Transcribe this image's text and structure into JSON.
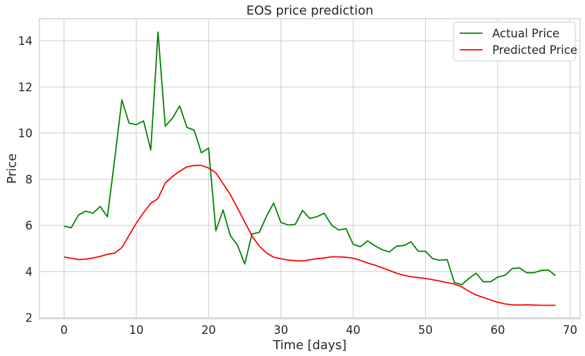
{
  "chart_data": {
    "type": "line",
    "title": "EOS price prediction",
    "xlabel": "Time [days]",
    "ylabel": "Price",
    "xlim": [
      -3.4,
      71.4
    ],
    "ylim": [
      1.96,
      14.96
    ],
    "xticks": [
      0,
      10,
      20,
      30,
      40,
      50,
      60,
      70
    ],
    "yticks": [
      2,
      4,
      6,
      8,
      10,
      12,
      14
    ],
    "grid": true,
    "legend_position": "upper right",
    "x": [
      0,
      1,
      2,
      3,
      4,
      5,
      6,
      7,
      8,
      9,
      10,
      11,
      12,
      13,
      14,
      15,
      16,
      17,
      18,
      19,
      20,
      21,
      22,
      23,
      24,
      25,
      26,
      27,
      28,
      29,
      30,
      31,
      32,
      33,
      34,
      35,
      36,
      37,
      38,
      39,
      40,
      41,
      42,
      43,
      44,
      45,
      46,
      47,
      48,
      49,
      50,
      51,
      52,
      53,
      54,
      55,
      56,
      57,
      58,
      59,
      60,
      61,
      62,
      63,
      64,
      65,
      66,
      67,
      68
    ],
    "series": [
      {
        "name": "Actual Price",
        "color": "#008000",
        "values": [
          5.97,
          5.9,
          6.45,
          6.62,
          6.53,
          6.82,
          6.38,
          8.85,
          11.44,
          10.43,
          10.37,
          10.53,
          9.27,
          14.38,
          10.3,
          10.65,
          11.18,
          10.25,
          10.13,
          9.15,
          9.35,
          5.77,
          6.67,
          5.56,
          5.14,
          4.33,
          5.63,
          5.7,
          6.39,
          6.97,
          6.13,
          6.02,
          6.05,
          6.65,
          6.3,
          6.38,
          6.53,
          6.02,
          5.8,
          5.86,
          5.18,
          5.08,
          5.33,
          5.12,
          4.95,
          4.85,
          5.1,
          5.13,
          5.29,
          4.88,
          4.88,
          4.56,
          4.49,
          4.52,
          3.53,
          3.43,
          3.7,
          3.93,
          3.56,
          3.56,
          3.76,
          3.84,
          4.13,
          4.16,
          3.95,
          3.95,
          4.05,
          4.07,
          3.83
        ]
      },
      {
        "name": "Predicted Price",
        "color": "#ff0000",
        "values": [
          4.63,
          4.58,
          4.52,
          4.54,
          4.59,
          4.66,
          4.75,
          4.8,
          5.04,
          5.57,
          6.1,
          6.55,
          6.96,
          7.17,
          7.84,
          8.12,
          8.35,
          8.54,
          8.6,
          8.6,
          8.49,
          8.28,
          7.81,
          7.34,
          6.75,
          6.15,
          5.55,
          5.11,
          4.81,
          4.62,
          4.56,
          4.5,
          4.47,
          4.46,
          4.51,
          4.56,
          4.59,
          4.64,
          4.64,
          4.62,
          4.58,
          4.49,
          4.37,
          4.28,
          4.17,
          4.05,
          3.93,
          3.84,
          3.78,
          3.74,
          3.7,
          3.65,
          3.59,
          3.52,
          3.46,
          3.34,
          3.15,
          2.99,
          2.88,
          2.77,
          2.67,
          2.6,
          2.56,
          2.55,
          2.56,
          2.55,
          2.54,
          2.54,
          2.54
        ]
      }
    ]
  }
}
